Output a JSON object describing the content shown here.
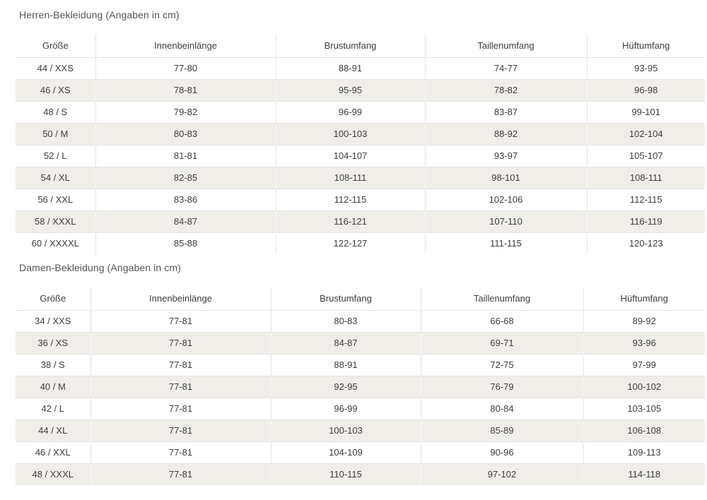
{
  "page": {
    "sections": [
      {
        "title": "Herren-Bekleidung (Angaben in cm)",
        "columns": [
          "Größe",
          "Innenbeinlänge",
          "Brustumfang",
          "Taillenumfang",
          "Hüftumfang"
        ],
        "rows": [
          [
            "44 / XXS",
            "77-80",
            "88-91",
            "74-77",
            "93-95"
          ],
          [
            "46 / XS",
            "78-81",
            "95-95",
            "78-82",
            "96-98"
          ],
          [
            "48 / S",
            "79-82",
            "96-99",
            "83-87",
            "99-101"
          ],
          [
            "50 / M",
            "80-83",
            "100-103",
            "88-92",
            "102-104"
          ],
          [
            "52 / L",
            "81-81",
            "104-107",
            "93-97",
            "105-107"
          ],
          [
            "54 / XL",
            "82-85",
            "108-111",
            "98-101",
            "108-111"
          ],
          [
            "56 / XXL",
            "83-86",
            "112-115",
            "102-106",
            "112-115"
          ],
          [
            "58 / XXXL",
            "84-87",
            "116-121",
            "107-110",
            "116-119"
          ],
          [
            "60 / XXXXL",
            "85-88",
            "122-127",
            "111-115",
            "120-123"
          ]
        ]
      },
      {
        "title": "Damen-Bekleidung (Angaben in cm)",
        "columns": [
          "Größe",
          "Innenbeinlänge",
          "Brustumfang",
          "Taillenumfang",
          "Hüftumfang"
        ],
        "rows": [
          [
            "34 / XXS",
            "77-81",
            "80-83",
            "66-68",
            "89-92"
          ],
          [
            "36 / XS",
            "77-81",
            "84-87",
            "69-71",
            "93-96"
          ],
          [
            "38 / S",
            "77-81",
            "88-91",
            "72-75",
            "97-99"
          ],
          [
            "40 / M",
            "77-81",
            "92-95",
            "76-79",
            "100-102"
          ],
          [
            "42 / L",
            "77-81",
            "96-99",
            "80-84",
            "103-105"
          ],
          [
            "44 / XL",
            "77-81",
            "100-103",
            "85-89",
            "106-108"
          ],
          [
            "46 / XXL",
            "77-81",
            "104-109",
            "90-96",
            "109-113"
          ],
          [
            "48 / XXXL",
            "77-81",
            "110-115",
            "97-102",
            "114-118"
          ]
        ]
      }
    ]
  },
  "colors": {
    "stripe": "#f1eeea",
    "row_border": "#e7e4e0",
    "column_border": "#e8e5e1",
    "text": "#3d3d3d",
    "title": "#555555"
  }
}
